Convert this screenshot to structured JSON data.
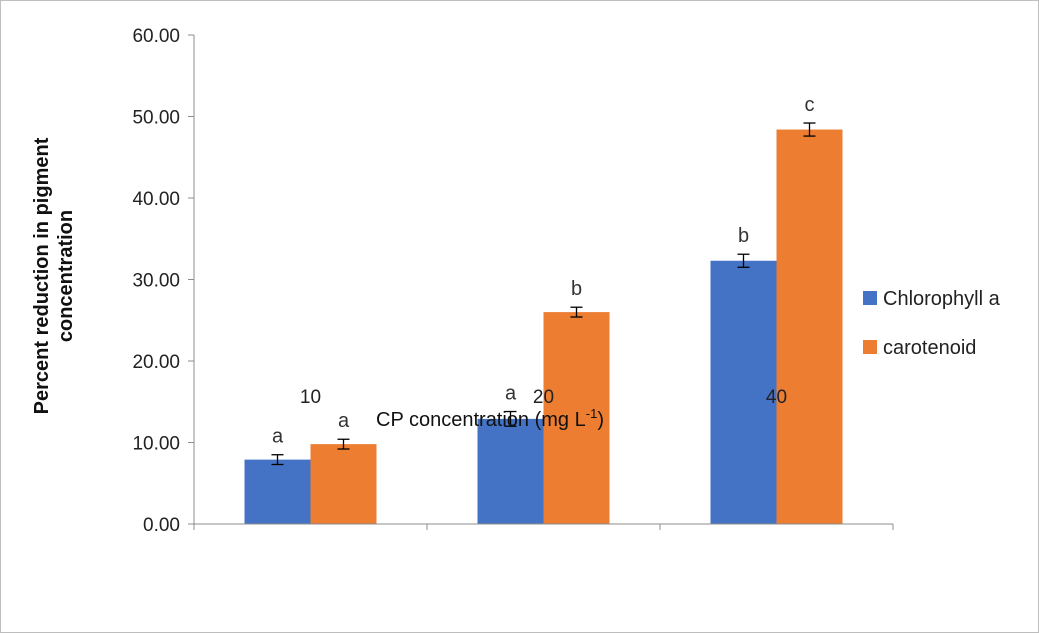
{
  "chart_data": {
    "type": "bar",
    "title": "",
    "xlabel": "CP concentration  (mg L",
    "xlabel_sup": "-1",
    "xlabel_close": ")",
    "ylabel_line1": "Percent reduction  in pigment",
    "ylabel_line2": "concentration",
    "ylim": [
      0,
      60
    ],
    "yticks": [
      "0.00",
      "10.00",
      "20.00",
      "30.00",
      "40.00",
      "50.00",
      "60.00"
    ],
    "ytick_values": [
      0,
      10,
      20,
      30,
      40,
      50,
      60
    ],
    "categories": [
      "10",
      "20",
      "40"
    ],
    "grid": false,
    "legend_position": "right",
    "series": [
      {
        "name": "Chlorophyll a",
        "color": "#4472c4",
        "values": [
          7.9,
          12.9,
          32.3
        ],
        "errors": [
          0.6,
          0.9,
          0.8
        ],
        "letters": [
          "a",
          "a",
          "b"
        ]
      },
      {
        "name": "carotenoid",
        "color": "#ed7d31",
        "values": [
          9.8,
          26.0,
          48.4
        ],
        "errors": [
          0.6,
          0.6,
          0.8
        ],
        "letters": [
          "a",
          "b",
          "c"
        ]
      }
    ]
  }
}
